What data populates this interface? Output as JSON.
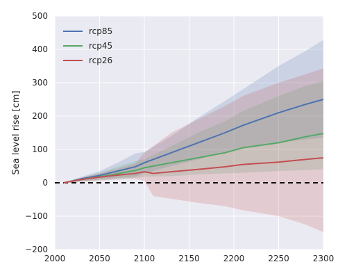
{
  "chart_data": {
    "type": "line",
    "xlabel": "",
    "ylabel": "Sea level rise [cm]",
    "xlim": [
      2000,
      2300
    ],
    "ylim": [
      -200,
      500
    ],
    "xticks": [
      "2000",
      "2050",
      "2100",
      "2150",
      "2200",
      "2250",
      "2300"
    ],
    "yticks": [
      "500",
      "400",
      "300",
      "200",
      "100",
      "0",
      "−100",
      "−200"
    ],
    "grid": true,
    "legend_position": "top-left",
    "zero_line": {
      "y": 0,
      "style": "dashed",
      "color": "#000000"
    },
    "series": [
      {
        "name": "rcp85",
        "color": "#4c72b0",
        "x": [
          2010,
          2030,
          2050,
          2070,
          2090,
          2100,
          2130,
          2160,
          2190,
          2210,
          2250,
          2280,
          2300
        ],
        "values": [
          0,
          12,
          22,
          35,
          48,
          60,
          90,
          120,
          150,
          172,
          210,
          235,
          250
        ],
        "band_upper": [
          0,
          18,
          35,
          60,
          88,
          92,
          140,
          195,
          245,
          280,
          350,
          395,
          428
        ],
        "band_lower": [
          0,
          5,
          10,
          15,
          18,
          28,
          50,
          70,
          92,
          105,
          120,
          130,
          135
        ]
      },
      {
        "name": "rcp45",
        "color": "#55a868",
        "x": [
          2010,
          2030,
          2050,
          2070,
          2090,
          2100,
          2130,
          2160,
          2190,
          2210,
          2250,
          2280,
          2300
        ],
        "values": [
          0,
          10,
          18,
          27,
          37,
          45,
          60,
          75,
          90,
          105,
          120,
          138,
          148
        ],
        "band_upper": [
          0,
          16,
          30,
          48,
          65,
          70,
          110,
          150,
          185,
          215,
          260,
          290,
          305
        ],
        "band_lower": [
          0,
          4,
          8,
          12,
          15,
          18,
          20,
          25,
          28,
          30,
          35,
          38,
          40
        ]
      },
      {
        "name": "rcp26",
        "color": "#c44e52",
        "x": [
          2010,
          2030,
          2050,
          2070,
          2090,
          2100,
          2110,
          2130,
          2160,
          2190,
          2210,
          2250,
          2280,
          2300
        ],
        "values": [
          0,
          10,
          17,
          23,
          28,
          33,
          28,
          33,
          40,
          48,
          55,
          62,
          70,
          75
        ],
        "band_upper": [
          0,
          15,
          28,
          42,
          58,
          90,
          110,
          150,
          190,
          230,
          260,
          300,
          325,
          343
        ],
        "band_lower": [
          0,
          3,
          6,
          10,
          12,
          6,
          -40,
          -48,
          -60,
          -70,
          -82,
          -100,
          -125,
          -148
        ]
      }
    ]
  }
}
